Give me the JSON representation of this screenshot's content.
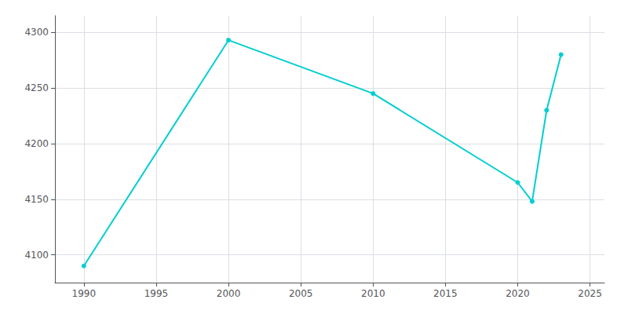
{
  "chart_data": {
    "type": "line",
    "x": [
      1990,
      2000,
      2010,
      2020,
      2021,
      2022,
      2023
    ],
    "values": [
      4090,
      4293,
      4245,
      4165,
      4148,
      4230,
      4280
    ],
    "color": "#00CED1",
    "marker": "circle",
    "xlim": [
      1988,
      2026
    ],
    "xticks": [
      1990,
      1995,
      2000,
      2005,
      2010,
      2015,
      2020,
      2025
    ],
    "ylim": [
      4075,
      4315
    ],
    "yticks": [
      4100,
      4150,
      4200,
      4250,
      4300
    ],
    "grid": true
  }
}
